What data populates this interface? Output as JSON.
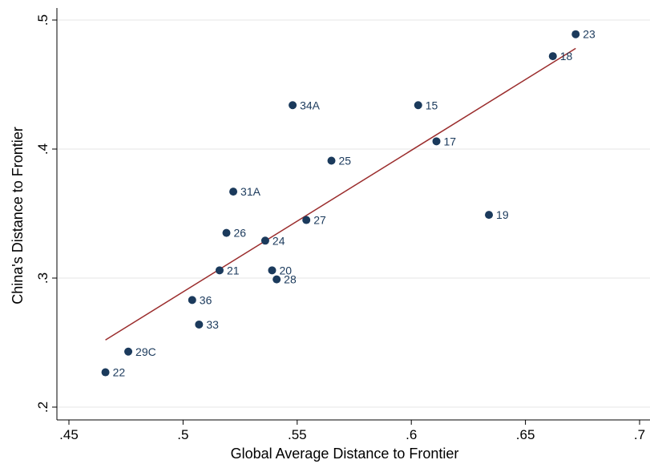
{
  "chart_data": {
    "type": "scatter",
    "xlabel": "Global Average Distance to Frontier",
    "ylabel": "China's Distance to Frontier",
    "xlim": [
      0.45,
      0.7
    ],
    "ylim": [
      0.2,
      0.5
    ],
    "xticks": [
      {
        "value": 0.45,
        "label": ".45"
      },
      {
        "value": 0.5,
        "label": ".5"
      },
      {
        "value": 0.55,
        "label": ".55"
      },
      {
        "value": 0.6,
        "label": ".6"
      },
      {
        "value": 0.65,
        "label": ".65"
      },
      {
        "value": 0.7,
        "label": ".7"
      }
    ],
    "yticks": [
      {
        "value": 0.2,
        "label": ".2"
      },
      {
        "value": 0.3,
        "label": ".3"
      },
      {
        "value": 0.4,
        "label": ".4"
      },
      {
        "value": 0.5,
        "label": ".5"
      }
    ],
    "grid": true,
    "points": [
      {
        "label": "23",
        "x": 0.672,
        "y": 0.489
      },
      {
        "label": "18",
        "x": 0.662,
        "y": 0.472
      },
      {
        "label": "34A",
        "x": 0.548,
        "y": 0.434
      },
      {
        "label": "15",
        "x": 0.603,
        "y": 0.434
      },
      {
        "label": "17",
        "x": 0.611,
        "y": 0.406
      },
      {
        "label": "25",
        "x": 0.565,
        "y": 0.391
      },
      {
        "label": "31A",
        "x": 0.522,
        "y": 0.367
      },
      {
        "label": "19",
        "x": 0.634,
        "y": 0.349
      },
      {
        "label": "27",
        "x": 0.554,
        "y": 0.345
      },
      {
        "label": "26",
        "x": 0.519,
        "y": 0.335
      },
      {
        "label": "24",
        "x": 0.536,
        "y": 0.329
      },
      {
        "label": "21",
        "x": 0.516,
        "y": 0.306
      },
      {
        "label": "20",
        "x": 0.539,
        "y": 0.306
      },
      {
        "label": "28",
        "x": 0.541,
        "y": 0.299
      },
      {
        "label": "36",
        "x": 0.504,
        "y": 0.283
      },
      {
        "label": "33",
        "x": 0.507,
        "y": 0.264
      },
      {
        "label": "29C",
        "x": 0.476,
        "y": 0.243
      },
      {
        "label": "22",
        "x": 0.466,
        "y": 0.227
      }
    ],
    "fit_line": {
      "x1": 0.466,
      "y1": 0.252,
      "x2": 0.672,
      "y2": 0.478
    },
    "colors": {
      "marker": "#1b3a5c",
      "fit_line": "#9b2d2d",
      "grid": "#e6e6e6",
      "axis": "#000000"
    }
  }
}
